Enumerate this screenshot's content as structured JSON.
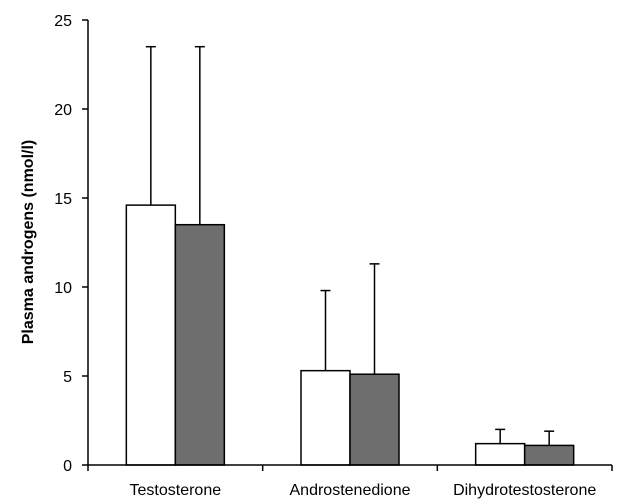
{
  "chart_data": {
    "type": "bar",
    "title": "",
    "xlabel": "",
    "ylabel": "Plasma androgens (nmol/l)",
    "ylim": [
      0,
      25
    ],
    "yticks": [
      0,
      5,
      10,
      15,
      20,
      25
    ],
    "ytick_labels": [
      "0",
      "5",
      "10",
      "15",
      "20",
      "25"
    ],
    "categories": [
      "Testosterone",
      "Androstenedione",
      "Dihydrotestosterone"
    ],
    "series": [
      {
        "values": [
          14.6,
          5.3,
          1.2
        ],
        "errors": [
          8.9,
          4.5,
          0.8
        ],
        "color": "#ffffff"
      },
      {
        "values": [
          13.5,
          5.1,
          1.1
        ],
        "errors": [
          10.0,
          6.2,
          0.8
        ],
        "color": "#6e6e6e"
      }
    ],
    "grid": false,
    "legend": "none"
  }
}
